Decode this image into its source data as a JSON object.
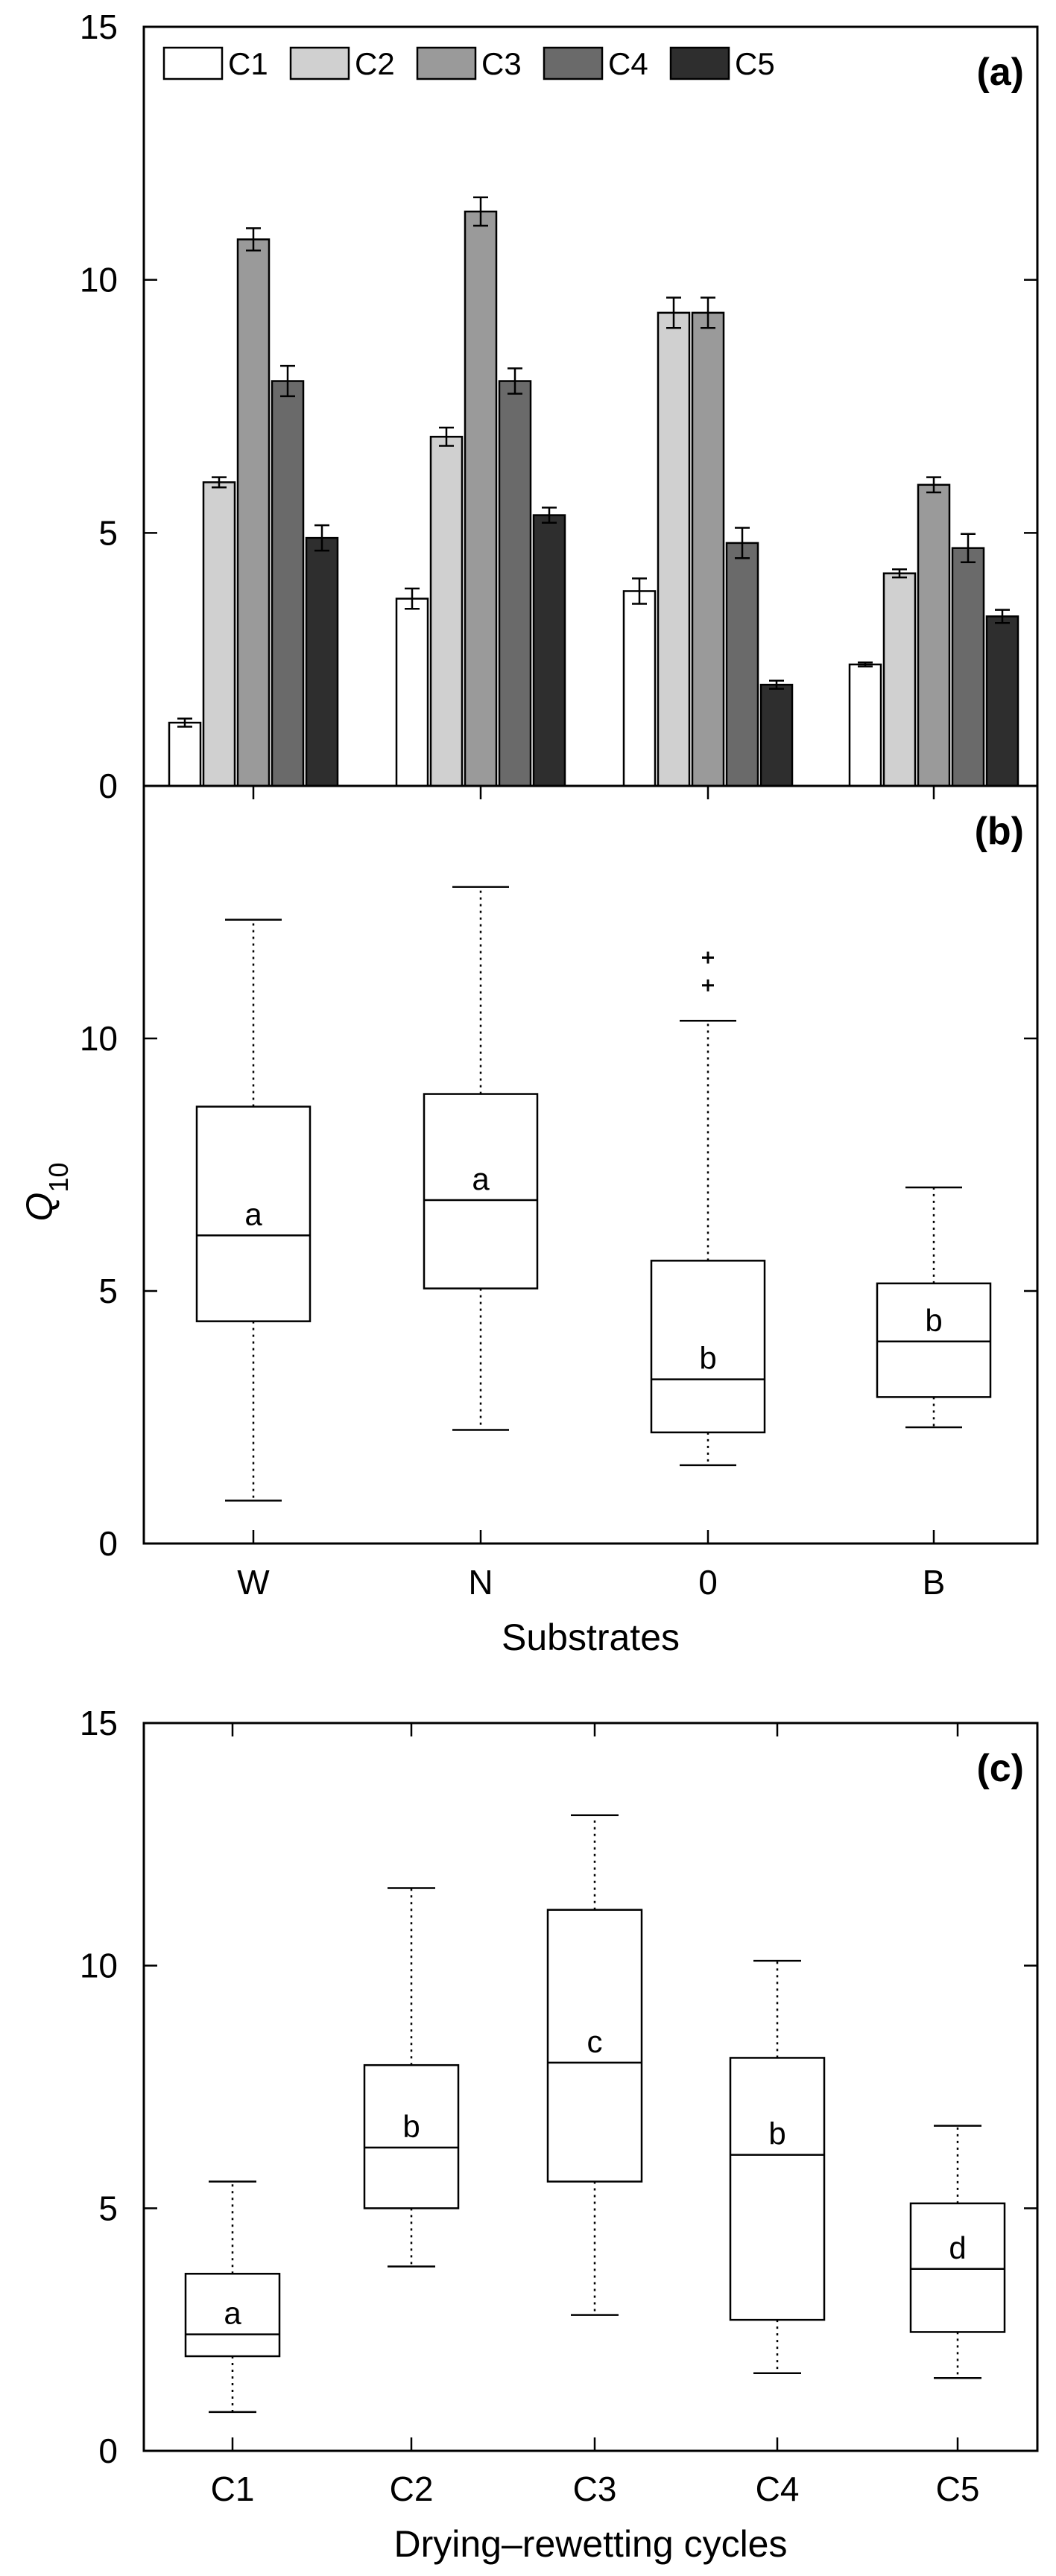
{
  "chart_data": [
    {
      "panel": "(a)",
      "type": "bar",
      "categories": [
        "W",
        "N",
        "0",
        "B"
      ],
      "series": [
        {
          "name": "C1",
          "color": "#ffffff",
          "values": [
            1.25,
            3.7,
            3.85,
            2.4
          ],
          "errors": [
            0.08,
            0.2,
            0.25,
            0.04
          ]
        },
        {
          "name": "C2",
          "color": "#d0d0d0",
          "values": [
            6.0,
            6.9,
            9.35,
            4.2
          ],
          "errors": [
            0.1,
            0.18,
            0.3,
            0.08
          ]
        },
        {
          "name": "C3",
          "color": "#9a9a9a",
          "values": [
            10.8,
            11.35,
            9.35,
            5.95
          ],
          "errors": [
            0.22,
            0.28,
            0.3,
            0.15
          ]
        },
        {
          "name": "C4",
          "color": "#6a6a6a",
          "values": [
            8.0,
            8.0,
            4.8,
            4.7
          ],
          "errors": [
            0.3,
            0.25,
            0.3,
            0.28
          ]
        },
        {
          "name": "C5",
          "color": "#2e2e2e",
          "values": [
            4.9,
            5.35,
            2.0,
            3.35
          ],
          "errors": [
            0.25,
            0.15,
            0.08,
            0.13
          ]
        }
      ],
      "ylim": [
        0,
        15
      ],
      "yticks": [
        "0",
        "5",
        "10",
        "15"
      ],
      "legend_position": "top-left"
    },
    {
      "panel": "(b)",
      "type": "box",
      "categories": [
        "W",
        "N",
        "0",
        "B"
      ],
      "xlabel": "Substrates",
      "ylabel_main": "Q",
      "ylabel_sub": "10",
      "ylim": [
        0,
        15
      ],
      "yticks": [
        "0",
        "5",
        "10"
      ],
      "boxes": [
        {
          "whisker_low": 0.85,
          "q1": 4.4,
          "median": 6.1,
          "q3": 8.65,
          "whisker_high": 12.35,
          "outliers": [],
          "letter": "a"
        },
        {
          "whisker_low": 2.25,
          "q1": 5.05,
          "median": 6.8,
          "q3": 8.9,
          "whisker_high": 13.0,
          "outliers": [],
          "letter": "a"
        },
        {
          "whisker_low": 1.55,
          "q1": 2.2,
          "median": 3.25,
          "q3": 5.6,
          "whisker_high": 10.35,
          "outliers": [
            11.05,
            11.6
          ],
          "letter": "b"
        },
        {
          "whisker_low": 2.3,
          "q1": 2.9,
          "median": 4.0,
          "q3": 5.15,
          "whisker_high": 7.05,
          "outliers": [],
          "letter": "b"
        }
      ]
    },
    {
      "panel": "(c)",
      "type": "box",
      "categories": [
        "C1",
        "C2",
        "C3",
        "C4",
        "C5"
      ],
      "xlabel": "Drying–rewetting cycles",
      "ylim": [
        0,
        15
      ],
      "yticks": [
        "0",
        "5",
        "10",
        "15"
      ],
      "boxes": [
        {
          "whisker_low": 0.8,
          "q1": 1.95,
          "median": 2.4,
          "q3": 3.65,
          "whisker_high": 5.55,
          "outliers": [],
          "letter": "a"
        },
        {
          "whisker_low": 3.8,
          "q1": 5.0,
          "median": 6.25,
          "q3": 7.95,
          "whisker_high": 11.6,
          "outliers": [],
          "letter": "b"
        },
        {
          "whisker_low": 2.8,
          "q1": 5.55,
          "median": 8.0,
          "q3": 11.15,
          "whisker_high": 13.1,
          "outliers": [],
          "letter": "c"
        },
        {
          "whisker_low": 1.6,
          "q1": 2.7,
          "median": 6.1,
          "q3": 8.1,
          "whisker_high": 10.1,
          "outliers": [],
          "letter": "b"
        },
        {
          "whisker_low": 1.5,
          "q1": 2.45,
          "median": 3.75,
          "q3": 5.1,
          "whisker_high": 6.7,
          "outliers": [],
          "letter": "d"
        }
      ]
    }
  ]
}
